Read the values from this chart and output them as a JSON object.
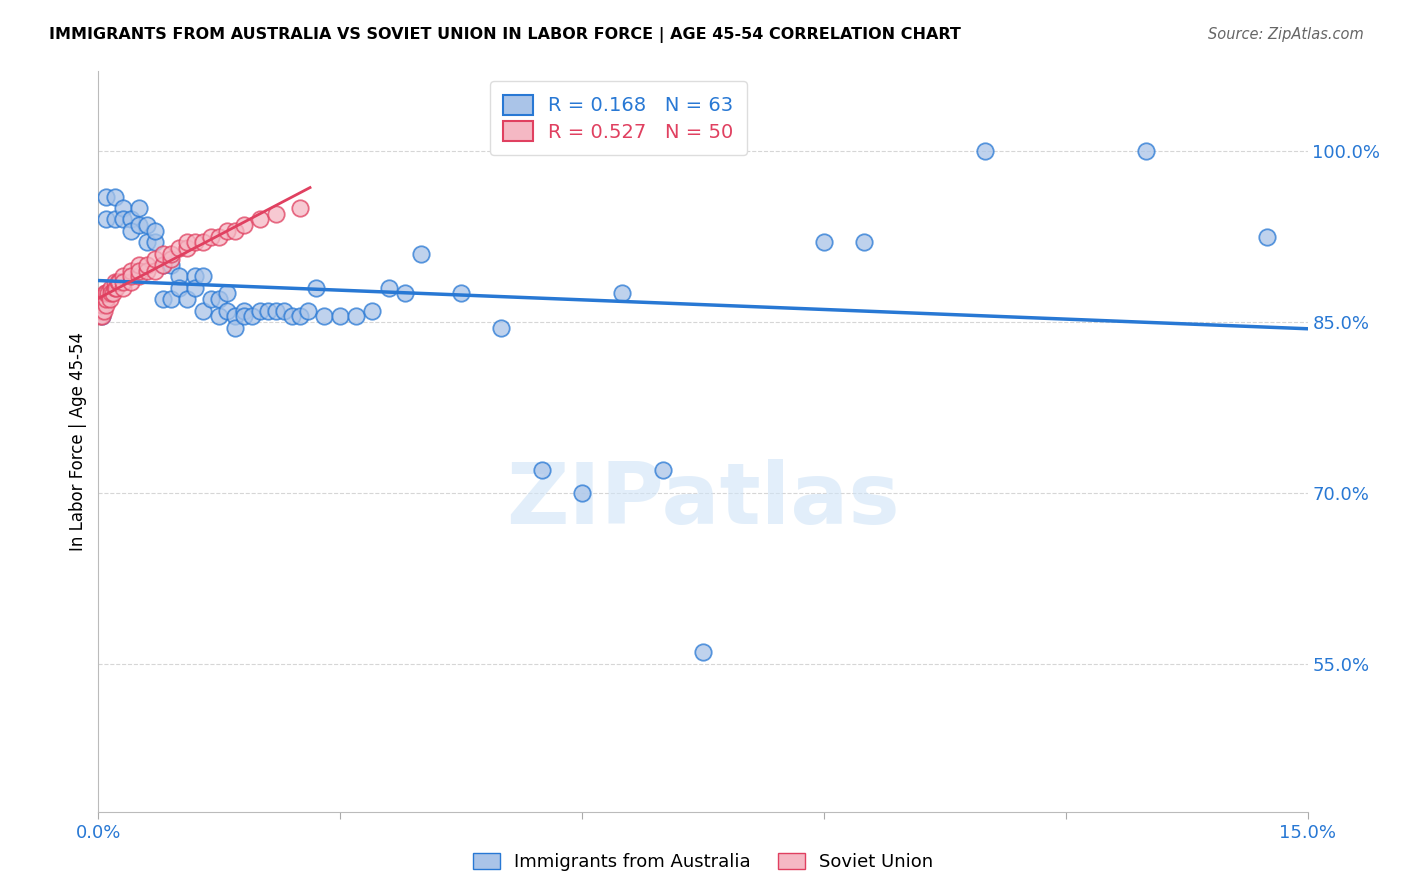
{
  "title": "IMMIGRANTS FROM AUSTRALIA VS SOVIET UNION IN LABOR FORCE | AGE 45-54 CORRELATION CHART",
  "source": "Source: ZipAtlas.com",
  "ylabel_label": "In Labor Force | Age 45-54",
  "x_min": 0.0,
  "x_max": 0.15,
  "y_min": 0.42,
  "y_max": 1.07,
  "legend_R_australia": "0.168",
  "legend_N_australia": "63",
  "legend_R_soviet": "0.527",
  "legend_N_soviet": "50",
  "australia_color": "#aac4e8",
  "soviet_color": "#f5b8c4",
  "australia_line_color": "#2878d4",
  "soviet_line_color": "#e04060",
  "watermark_text": "ZIPatlas",
  "aus_x": [
    0.0005,
    0.001,
    0.001,
    0.002,
    0.002,
    0.003,
    0.003,
    0.004,
    0.004,
    0.005,
    0.005,
    0.006,
    0.006,
    0.007,
    0.007,
    0.008,
    0.008,
    0.009,
    0.009,
    0.01,
    0.01,
    0.011,
    0.012,
    0.012,
    0.013,
    0.013,
    0.014,
    0.015,
    0.015,
    0.016,
    0.016,
    0.017,
    0.017,
    0.018,
    0.018,
    0.019,
    0.02,
    0.021,
    0.022,
    0.023,
    0.024,
    0.025,
    0.026,
    0.027,
    0.028,
    0.03,
    0.032,
    0.034,
    0.036,
    0.038,
    0.04,
    0.045,
    0.05,
    0.055,
    0.06,
    0.065,
    0.07,
    0.075,
    0.09,
    0.095,
    0.11,
    0.13,
    0.145
  ],
  "aus_y": [
    0.855,
    0.94,
    0.96,
    0.94,
    0.96,
    0.95,
    0.94,
    0.94,
    0.93,
    0.95,
    0.935,
    0.92,
    0.935,
    0.92,
    0.93,
    0.87,
    0.9,
    0.87,
    0.9,
    0.89,
    0.88,
    0.87,
    0.89,
    0.88,
    0.89,
    0.86,
    0.87,
    0.87,
    0.855,
    0.875,
    0.86,
    0.855,
    0.845,
    0.86,
    0.855,
    0.855,
    0.86,
    0.86,
    0.86,
    0.86,
    0.855,
    0.855,
    0.86,
    0.88,
    0.855,
    0.855,
    0.855,
    0.86,
    0.88,
    0.875,
    0.91,
    0.875,
    0.845,
    0.72,
    0.7,
    0.875,
    0.72,
    0.56,
    0.92,
    0.92,
    1.0,
    1.0,
    0.925
  ],
  "sov_x": [
    0.0002,
    0.0003,
    0.0004,
    0.0005,
    0.0006,
    0.0007,
    0.0008,
    0.0009,
    0.001,
    0.001,
    0.0012,
    0.0014,
    0.0015,
    0.0016,
    0.0018,
    0.002,
    0.002,
    0.0022,
    0.0024,
    0.0026,
    0.003,
    0.003,
    0.003,
    0.004,
    0.004,
    0.004,
    0.005,
    0.005,
    0.005,
    0.006,
    0.006,
    0.007,
    0.007,
    0.008,
    0.008,
    0.009,
    0.009,
    0.01,
    0.011,
    0.011,
    0.012,
    0.013,
    0.014,
    0.015,
    0.016,
    0.017,
    0.018,
    0.02,
    0.022,
    0.025
  ],
  "sov_y": [
    0.855,
    0.86,
    0.855,
    0.865,
    0.87,
    0.86,
    0.875,
    0.865,
    0.87,
    0.875,
    0.875,
    0.87,
    0.88,
    0.875,
    0.875,
    0.88,
    0.885,
    0.88,
    0.885,
    0.885,
    0.88,
    0.89,
    0.885,
    0.885,
    0.895,
    0.89,
    0.89,
    0.9,
    0.895,
    0.895,
    0.9,
    0.895,
    0.905,
    0.9,
    0.91,
    0.905,
    0.91,
    0.915,
    0.915,
    0.92,
    0.92,
    0.92,
    0.925,
    0.925,
    0.93,
    0.93,
    0.935,
    0.94,
    0.945,
    0.95
  ]
}
